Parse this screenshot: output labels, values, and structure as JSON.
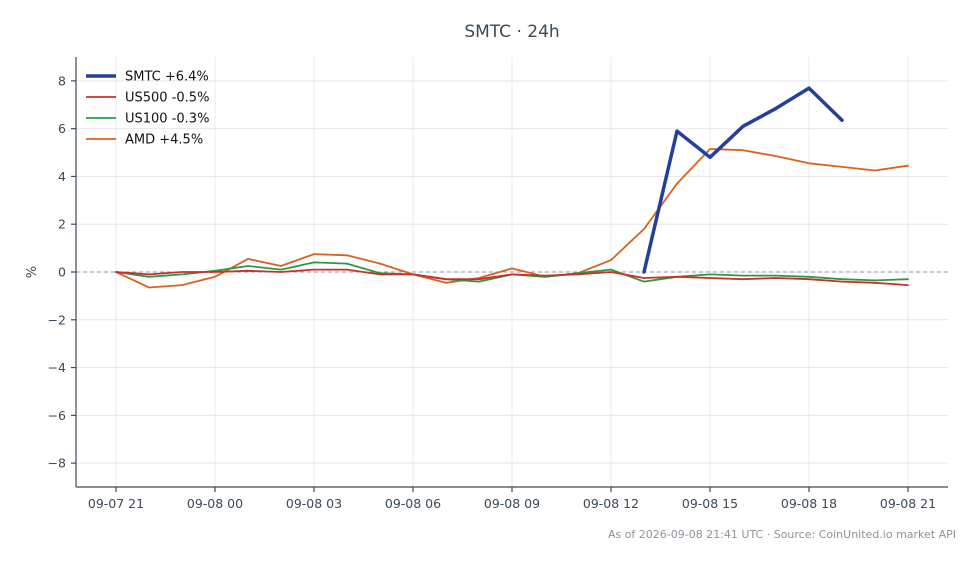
{
  "chart_data": {
    "type": "line",
    "title": "SMTC · 24h",
    "xlabel": "",
    "ylabel": "%",
    "xlim": [
      "09-07 21",
      "09-08 21"
    ],
    "ylim": [
      -9,
      9
    ],
    "x_ticks": [
      "09-07 21",
      "09-08 00",
      "09-08 03",
      "09-08 06",
      "09-08 09",
      "09-08 12",
      "09-08 15",
      "09-08 18",
      "09-08 21"
    ],
    "y_ticks": [
      8,
      6,
      4,
      2,
      0,
      -2,
      -4,
      -6,
      -8
    ],
    "y_tick_labels": [
      "8",
      "6",
      "4",
      "2",
      "0",
      "−2",
      "−4",
      "−6",
      "−8"
    ],
    "x": [
      "09-07 21",
      "09-07 22",
      "09-07 23",
      "09-08 00",
      "09-08 01",
      "09-08 02",
      "09-08 03",
      "09-08 04",
      "09-08 05",
      "09-08 06",
      "09-08 07",
      "09-08 08",
      "09-08 09",
      "09-08 10",
      "09-08 11",
      "09-08 12",
      "09-08 13",
      "09-08 14",
      "09-08 15",
      "09-08 16",
      "09-08 17",
      "09-08 18",
      "09-08 19",
      "09-08 20",
      "09-08 21"
    ],
    "series": [
      {
        "name": "SMTC +6.4%",
        "color": "#23409a",
        "width": 3.5,
        "values": [
          null,
          null,
          null,
          null,
          null,
          null,
          null,
          null,
          null,
          null,
          null,
          null,
          null,
          null,
          null,
          null,
          0.0,
          5.9,
          4.8,
          6.1,
          6.85,
          7.7,
          6.35,
          null,
          null
        ]
      },
      {
        "name": "US500 -0.5%",
        "color": "#c9302c",
        "width": 1.8,
        "values": [
          0.0,
          -0.1,
          0.0,
          0.0,
          0.05,
          0.0,
          0.1,
          0.1,
          -0.1,
          -0.1,
          -0.3,
          -0.3,
          -0.1,
          -0.15,
          -0.1,
          0.0,
          -0.25,
          -0.2,
          -0.25,
          -0.3,
          -0.25,
          -0.3,
          -0.4,
          -0.45,
          -0.55
        ]
      },
      {
        "name": "US100 -0.3%",
        "color": "#2e9944",
        "width": 1.8,
        "values": [
          0.0,
          -0.2,
          -0.1,
          0.05,
          0.25,
          0.1,
          0.4,
          0.35,
          -0.05,
          -0.1,
          -0.3,
          -0.4,
          -0.1,
          -0.2,
          -0.05,
          0.1,
          -0.4,
          -0.2,
          -0.1,
          -0.15,
          -0.15,
          -0.2,
          -0.3,
          -0.35,
          -0.3
        ]
      },
      {
        "name": "AMD +4.5%",
        "color": "#d9621f",
        "width": 1.8,
        "values": [
          0.0,
          -0.65,
          -0.55,
          -0.2,
          0.55,
          0.25,
          0.75,
          0.7,
          0.35,
          -0.1,
          -0.45,
          -0.25,
          0.15,
          -0.2,
          -0.05,
          0.5,
          1.8,
          3.7,
          5.15,
          5.1,
          4.85,
          4.55,
          4.4,
          4.25,
          4.45
        ]
      }
    ],
    "reference_line": 0,
    "grid": true,
    "legend_position": "top-left"
  },
  "footer": "As of 2026-09-08 21:41 UTC · Source: CoinUnited.io market API"
}
